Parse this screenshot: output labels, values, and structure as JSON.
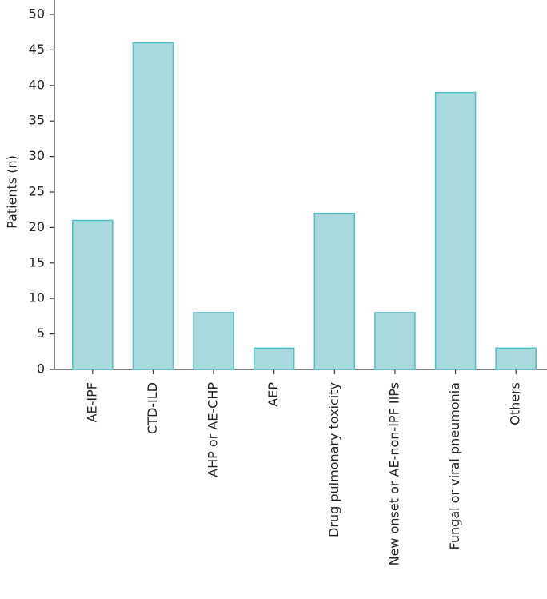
{
  "chart_data": {
    "type": "bar",
    "y_label": "Patients (n)",
    "categories": [
      "AE-IPF",
      "CTD-ILD",
      "AHP or AE-CHP",
      "AEP",
      "Drug pulmonary toxicity",
      "New onset or AE-non-IPF IIPs",
      "Fungal or viral pneumonia",
      "Others"
    ],
    "values": [
      21,
      46,
      8,
      3,
      22,
      8,
      39,
      3
    ],
    "color": "#a8d9de",
    "edge_color": "#4cbfc7",
    "ylim": [
      0,
      50
    ],
    "yticks": [
      0,
      5,
      10,
      15,
      20,
      25,
      30,
      35,
      40,
      45,
      50
    ],
    "grid": false
  }
}
